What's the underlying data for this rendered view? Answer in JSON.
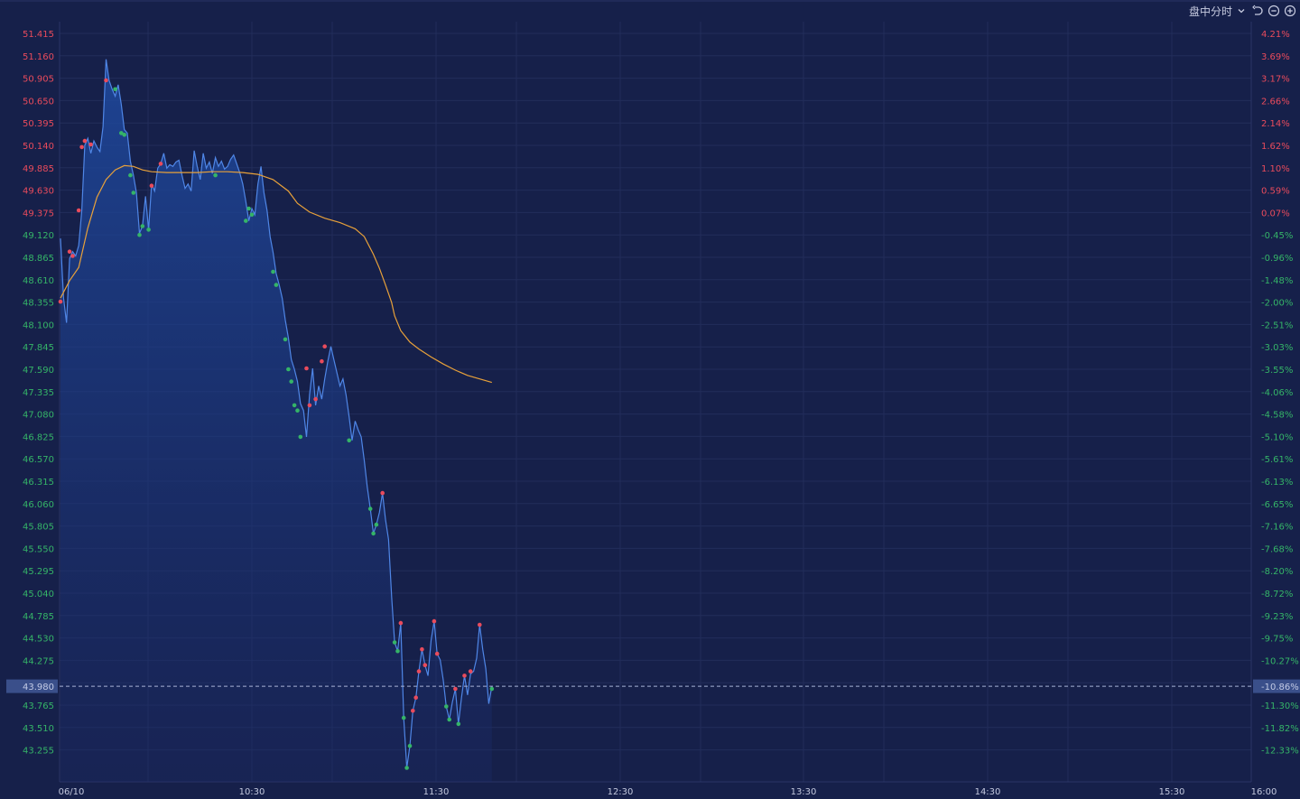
{
  "toolbar": {
    "mode_label": "盘中分时",
    "icons": [
      "chevron-down-icon",
      "undo-icon",
      "zoom-out-icon",
      "zoom-in-icon"
    ]
  },
  "colors": {
    "background": "#16204a",
    "grid": "#222d5a",
    "price_line": "#4f86e6",
    "avg_line": "#e8a13a",
    "up": "#e94b5c",
    "down": "#35b468",
    "last_tag_bg": "#3a4f8a",
    "last_tag_text": "#c3cbe6"
  },
  "chart_data": {
    "type": "line",
    "title": "",
    "x_ticks": [
      "06/10",
      "10:30",
      "11:30",
      "12:30",
      "13:30",
      "14:30",
      "15:30",
      "16:00"
    ],
    "session_minutes": 392,
    "ylim": [
      43.0,
      51.67
    ],
    "price_ticks": [
      "51.415",
      "51.160",
      "50.905",
      "50.650",
      "50.395",
      "50.140",
      "49.885",
      "49.630",
      "49.375",
      "49.120",
      "48.865",
      "48.610",
      "48.355",
      "48.100",
      "47.845",
      "47.590",
      "47.335",
      "47.080",
      "46.825",
      "46.570",
      "46.315",
      "46.060",
      "45.805",
      "45.550",
      "45.295",
      "45.040",
      "44.785",
      "44.530",
      "44.275",
      "43.765",
      "43.510",
      "43.255"
    ],
    "pct_ticks": [
      "4.21%",
      "3.69%",
      "3.17%",
      "2.66%",
      "2.14%",
      "1.62%",
      "1.10%",
      "0.59%",
      "0.07%",
      "-0.45%",
      "-0.96%",
      "-1.48%",
      "-2.00%",
      "-2.51%",
      "-3.03%",
      "-3.55%",
      "-4.06%",
      "-4.58%",
      "-5.10%",
      "-5.61%",
      "-6.13%",
      "-6.65%",
      "-7.16%",
      "-7.68%",
      "-8.20%",
      "-8.72%",
      "-9.23%",
      "-9.75%",
      "-10.27%",
      "-11.30%",
      "-11.82%",
      "-12.33%"
    ],
    "reference_price": 49.34,
    "last_price_label": "43.980",
    "last_pct_label": "-10.86%",
    "last_price": 43.98,
    "series": [
      {
        "role": "price",
        "points": [
          [
            0,
            49.08
          ],
          [
            1,
            48.4
          ],
          [
            2,
            48.12
          ],
          [
            3,
            48.85
          ],
          [
            4,
            48.93
          ],
          [
            5,
            48.88
          ],
          [
            6,
            49.0
          ],
          [
            7,
            49.4
          ],
          [
            8,
            50.14
          ],
          [
            9,
            50.22
          ],
          [
            10,
            50.05
          ],
          [
            11,
            50.19
          ],
          [
            12,
            50.12
          ],
          [
            13,
            50.07
          ],
          [
            14,
            50.35
          ],
          [
            15,
            51.12
          ],
          [
            16,
            50.88
          ],
          [
            17,
            50.78
          ],
          [
            18,
            50.7
          ],
          [
            19,
            50.83
          ],
          [
            20,
            50.61
          ],
          [
            21,
            50.32
          ],
          [
            22,
            50.28
          ],
          [
            23,
            49.96
          ],
          [
            24,
            49.8
          ],
          [
            25,
            49.6
          ],
          [
            26,
            49.14
          ],
          [
            27,
            49.22
          ],
          [
            28,
            49.56
          ],
          [
            29,
            49.18
          ],
          [
            30,
            49.7
          ],
          [
            31,
            49.62
          ],
          [
            32,
            49.88
          ],
          [
            33,
            49.93
          ],
          [
            34,
            50.05
          ],
          [
            35,
            49.88
          ],
          [
            36,
            49.92
          ],
          [
            37,
            49.9
          ],
          [
            38,
            49.95
          ],
          [
            39,
            49.97
          ],
          [
            40,
            49.8
          ],
          [
            41,
            49.65
          ],
          [
            42,
            49.7
          ],
          [
            43,
            49.62
          ],
          [
            44,
            50.08
          ],
          [
            45,
            49.9
          ],
          [
            46,
            49.75
          ],
          [
            47,
            50.05
          ],
          [
            48,
            49.88
          ],
          [
            49,
            49.95
          ],
          [
            50,
            49.82
          ],
          [
            51,
            50.0
          ],
          [
            52,
            49.9
          ],
          [
            53,
            49.96
          ],
          [
            54,
            49.87
          ],
          [
            55,
            49.9
          ],
          [
            56,
            49.98
          ],
          [
            57,
            50.03
          ],
          [
            58,
            49.93
          ],
          [
            59,
            49.83
          ],
          [
            60,
            49.7
          ],
          [
            61,
            49.5
          ],
          [
            62,
            49.28
          ],
          [
            63,
            49.42
          ],
          [
            64,
            49.35
          ],
          [
            65,
            49.7
          ],
          [
            66,
            49.9
          ],
          [
            67,
            49.6
          ],
          [
            68,
            49.4
          ],
          [
            69,
            49.1
          ],
          [
            70,
            48.92
          ],
          [
            71,
            48.68
          ],
          [
            72,
            48.55
          ],
          [
            73,
            48.4
          ],
          [
            74,
            48.15
          ],
          [
            75,
            47.95
          ],
          [
            76,
            47.7
          ],
          [
            77,
            47.59
          ],
          [
            78,
            47.45
          ],
          [
            79,
            47.2
          ],
          [
            80,
            47.12
          ],
          [
            81,
            46.82
          ],
          [
            82,
            47.3
          ],
          [
            83,
            47.6
          ],
          [
            84,
            47.18
          ],
          [
            85,
            47.4
          ],
          [
            86,
            47.25
          ],
          [
            87,
            47.48
          ],
          [
            88,
            47.68
          ],
          [
            89,
            47.85
          ],
          [
            90,
            47.7
          ],
          [
            91,
            47.55
          ],
          [
            92,
            47.4
          ],
          [
            93,
            47.48
          ],
          [
            94,
            47.3
          ],
          [
            95,
            47.05
          ],
          [
            96,
            46.78
          ],
          [
            97,
            47.0
          ],
          [
            98,
            46.9
          ],
          [
            99,
            46.82
          ],
          [
            100,
            46.55
          ],
          [
            101,
            46.25
          ],
          [
            102,
            46.0
          ],
          [
            103,
            45.72
          ],
          [
            104,
            45.82
          ],
          [
            105,
            45.96
          ],
          [
            106,
            46.18
          ],
          [
            107,
            45.88
          ],
          [
            108,
            45.65
          ],
          [
            109,
            45.0
          ],
          [
            110,
            44.48
          ],
          [
            111,
            44.38
          ],
          [
            112,
            44.7
          ],
          [
            113,
            43.62
          ],
          [
            114,
            43.05
          ],
          [
            115,
            43.3
          ],
          [
            116,
            43.7
          ],
          [
            117,
            43.85
          ],
          [
            118,
            44.15
          ],
          [
            119,
            44.4
          ],
          [
            120,
            44.22
          ],
          [
            121,
            44.1
          ],
          [
            122,
            44.5
          ],
          [
            123,
            44.72
          ],
          [
            124,
            44.35
          ],
          [
            125,
            44.28
          ],
          [
            126,
            44.05
          ],
          [
            127,
            43.75
          ],
          [
            128,
            43.6
          ],
          [
            129,
            43.8
          ],
          [
            130,
            43.95
          ],
          [
            131,
            43.55
          ],
          [
            132,
            43.85
          ],
          [
            133,
            44.1
          ],
          [
            134,
            43.88
          ],
          [
            135,
            44.12
          ],
          [
            136,
            44.15
          ],
          [
            137,
            44.3
          ],
          [
            138,
            44.68
          ],
          [
            139,
            44.4
          ],
          [
            140,
            44.18
          ],
          [
            141,
            43.78
          ],
          [
            142,
            43.98
          ]
        ],
        "markers": [
          {
            "x": 0,
            "y": 48.36,
            "dir": "up"
          },
          {
            "x": 3,
            "y": 48.93,
            "dir": "up"
          },
          {
            "x": 4,
            "y": 48.88,
            "dir": "up"
          },
          {
            "x": 6,
            "y": 49.4,
            "dir": "up"
          },
          {
            "x": 7,
            "y": 50.12,
            "dir": "up"
          },
          {
            "x": 8,
            "y": 50.19,
            "dir": "up"
          },
          {
            "x": 10,
            "y": 50.15,
            "dir": "up"
          },
          {
            "x": 15,
            "y": 50.88,
            "dir": "up"
          },
          {
            "x": 18,
            "y": 50.78,
            "dir": "down"
          },
          {
            "x": 20,
            "y": 50.28,
            "dir": "down"
          },
          {
            "x": 21,
            "y": 50.26,
            "dir": "down"
          },
          {
            "x": 23,
            "y": 49.8,
            "dir": "down"
          },
          {
            "x": 24,
            "y": 49.6,
            "dir": "down"
          },
          {
            "x": 26,
            "y": 49.12,
            "dir": "down"
          },
          {
            "x": 27,
            "y": 49.22,
            "dir": "down"
          },
          {
            "x": 29,
            "y": 49.18,
            "dir": "down"
          },
          {
            "x": 30,
            "y": 49.68,
            "dir": "up"
          },
          {
            "x": 33,
            "y": 49.93,
            "dir": "up"
          },
          {
            "x": 51,
            "y": 49.8,
            "dir": "down"
          },
          {
            "x": 61,
            "y": 49.28,
            "dir": "down"
          },
          {
            "x": 62,
            "y": 49.42,
            "dir": "down"
          },
          {
            "x": 63,
            "y": 49.35,
            "dir": "down"
          },
          {
            "x": 70,
            "y": 48.7,
            "dir": "down"
          },
          {
            "x": 71,
            "y": 48.55,
            "dir": "down"
          },
          {
            "x": 74,
            "y": 47.93,
            "dir": "down"
          },
          {
            "x": 75,
            "y": 47.59,
            "dir": "down"
          },
          {
            "x": 76,
            "y": 47.45,
            "dir": "down"
          },
          {
            "x": 77,
            "y": 47.18,
            "dir": "down"
          },
          {
            "x": 78,
            "y": 47.12,
            "dir": "down"
          },
          {
            "x": 79,
            "y": 46.82,
            "dir": "down"
          },
          {
            "x": 81,
            "y": 47.6,
            "dir": "up"
          },
          {
            "x": 82,
            "y": 47.18,
            "dir": "up"
          },
          {
            "x": 84,
            "y": 47.25,
            "dir": "up"
          },
          {
            "x": 86,
            "y": 47.68,
            "dir": "up"
          },
          {
            "x": 87,
            "y": 47.85,
            "dir": "up"
          },
          {
            "x": 95,
            "y": 46.78,
            "dir": "down"
          },
          {
            "x": 102,
            "y": 46.0,
            "dir": "down"
          },
          {
            "x": 103,
            "y": 45.72,
            "dir": "down"
          },
          {
            "x": 104,
            "y": 45.82,
            "dir": "down"
          },
          {
            "x": 106,
            "y": 46.18,
            "dir": "up"
          },
          {
            "x": 110,
            "y": 44.48,
            "dir": "down"
          },
          {
            "x": 111,
            "y": 44.38,
            "dir": "down"
          },
          {
            "x": 112,
            "y": 44.7,
            "dir": "up"
          },
          {
            "x": 113,
            "y": 43.62,
            "dir": "down"
          },
          {
            "x": 114,
            "y": 43.05,
            "dir": "down"
          },
          {
            "x": 115,
            "y": 43.3,
            "dir": "down"
          },
          {
            "x": 116,
            "y": 43.7,
            "dir": "up"
          },
          {
            "x": 117,
            "y": 43.85,
            "dir": "up"
          },
          {
            "x": 118,
            "y": 44.15,
            "dir": "up"
          },
          {
            "x": 119,
            "y": 44.4,
            "dir": "up"
          },
          {
            "x": 120,
            "y": 44.22,
            "dir": "up"
          },
          {
            "x": 123,
            "y": 44.72,
            "dir": "up"
          },
          {
            "x": 124,
            "y": 44.35,
            "dir": "up"
          },
          {
            "x": 127,
            "y": 43.75,
            "dir": "down"
          },
          {
            "x": 128,
            "y": 43.6,
            "dir": "down"
          },
          {
            "x": 130,
            "y": 43.95,
            "dir": "up"
          },
          {
            "x": 131,
            "y": 43.55,
            "dir": "down"
          },
          {
            "x": 133,
            "y": 44.1,
            "dir": "up"
          },
          {
            "x": 135,
            "y": 44.15,
            "dir": "up"
          },
          {
            "x": 138,
            "y": 44.68,
            "dir": "up"
          },
          {
            "x": 142,
            "y": 43.95,
            "dir": "down"
          }
        ]
      },
      {
        "role": "average",
        "points": [
          [
            0,
            48.4
          ],
          [
            3,
            48.6
          ],
          [
            6,
            48.75
          ],
          [
            9,
            49.2
          ],
          [
            12,
            49.55
          ],
          [
            15,
            49.75
          ],
          [
            18,
            49.86
          ],
          [
            21,
            49.91
          ],
          [
            24,
            49.9
          ],
          [
            27,
            49.86
          ],
          [
            30,
            49.84
          ],
          [
            35,
            49.83
          ],
          [
            40,
            49.83
          ],
          [
            45,
            49.83
          ],
          [
            50,
            49.84
          ],
          [
            55,
            49.84
          ],
          [
            60,
            49.83
          ],
          [
            65,
            49.81
          ],
          [
            70,
            49.75
          ],
          [
            75,
            49.62
          ],
          [
            78,
            49.48
          ],
          [
            82,
            49.38
          ],
          [
            87,
            49.31
          ],
          [
            92,
            49.26
          ],
          [
            97,
            49.19
          ],
          [
            100,
            49.1
          ],
          [
            103,
            48.9
          ],
          [
            105,
            48.74
          ],
          [
            107,
            48.55
          ],
          [
            109,
            48.35
          ],
          [
            110,
            48.2
          ],
          [
            112,
            48.03
          ],
          [
            115,
            47.9
          ],
          [
            118,
            47.82
          ],
          [
            122,
            47.73
          ],
          [
            126,
            47.65
          ],
          [
            130,
            47.58
          ],
          [
            134,
            47.52
          ],
          [
            138,
            47.48
          ],
          [
            142,
            47.44
          ]
        ]
      }
    ],
    "grid": true,
    "legend": "none"
  }
}
